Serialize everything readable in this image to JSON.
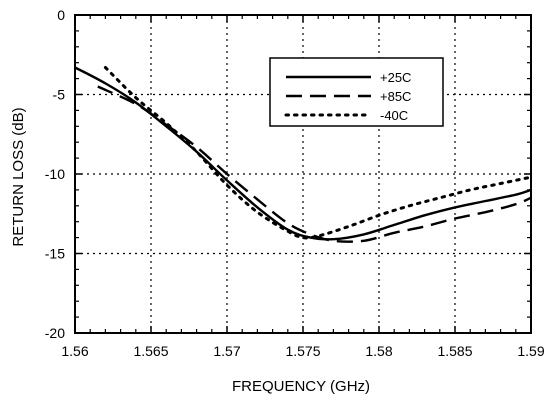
{
  "chart_data": {
    "type": "line",
    "title": "",
    "xlabel": "FREQUENCY (GHz)",
    "ylabel": "RETURN LOSS (dB)",
    "xlim": [
      1.56,
      1.59
    ],
    "ylim": [
      -20,
      0
    ],
    "xticks": [
      1.56,
      1.565,
      1.57,
      1.575,
      1.58,
      1.585,
      1.59
    ],
    "xtick_labels": [
      "1.56",
      "1.565",
      "1.57",
      "1.575",
      "1.58",
      "1.585",
      "1.59"
    ],
    "yticks": [
      0,
      -5,
      -10,
      -15,
      -20
    ],
    "ytick_labels": [
      "0",
      "-5",
      "-10",
      "-15",
      "-20"
    ],
    "grid": true,
    "legend_position": "top-right",
    "series": [
      {
        "name": "+25C",
        "style": "solid",
        "x": [
          1.56,
          1.562,
          1.564,
          1.566,
          1.568,
          1.57,
          1.572,
          1.574,
          1.5755,
          1.577,
          1.579,
          1.581,
          1.583,
          1.585,
          1.587,
          1.589,
          1.59
        ],
        "y": [
          -3.3,
          -4.3,
          -5.5,
          -7.0,
          -8.6,
          -10.4,
          -12.1,
          -13.5,
          -14.0,
          -14.1,
          -13.8,
          -13.2,
          -12.6,
          -12.1,
          -11.7,
          -11.3,
          -11.0
        ]
      },
      {
        "name": "+85C",
        "style": "dashed",
        "x": [
          1.5615,
          1.564,
          1.566,
          1.568,
          1.57,
          1.572,
          1.574,
          1.5755,
          1.577,
          1.579,
          1.581,
          1.583,
          1.585,
          1.587,
          1.589,
          1.59
        ],
        "y": [
          -4.5,
          -5.6,
          -6.9,
          -8.3,
          -10.0,
          -11.6,
          -13.1,
          -13.8,
          -14.2,
          -14.2,
          -13.7,
          -13.3,
          -12.8,
          -12.4,
          -11.9,
          -11.5
        ]
      },
      {
        "name": "-40C",
        "style": "dotted",
        "x": [
          1.562,
          1.564,
          1.566,
          1.568,
          1.57,
          1.572,
          1.574,
          1.575,
          1.576,
          1.578,
          1.58,
          1.582,
          1.584,
          1.586,
          1.588,
          1.59
        ],
        "y": [
          -3.3,
          -5.2,
          -6.8,
          -8.6,
          -10.7,
          -12.4,
          -13.6,
          -14.0,
          -13.9,
          -13.3,
          -12.6,
          -12.0,
          -11.5,
          -11.0,
          -10.6,
          -10.2
        ]
      }
    ]
  }
}
